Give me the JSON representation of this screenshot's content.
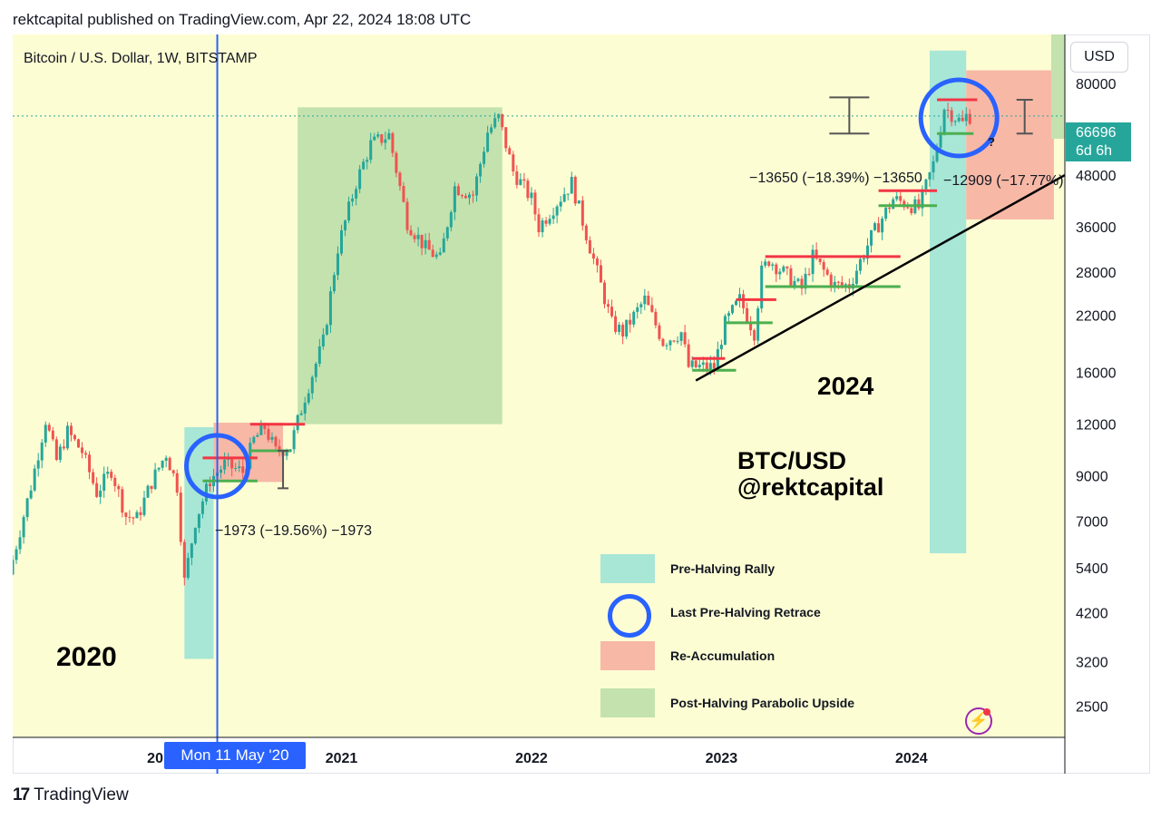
{
  "header": {
    "published_text": "rektcapital published on TradingView.com, Apr 22, 2024 18:08 UTC"
  },
  "footer": {
    "brand": "TradingView",
    "brand_mark": "17"
  },
  "chart_header": {
    "symbol_line": "Bitcoin / U.S. Dollar, 1W, BITSTAMP"
  },
  "currency_button": "USD",
  "price_tag": {
    "price": "66696",
    "countdown": "6d 6h"
  },
  "crosshair_date": "Mon 11 May '20",
  "annotations": {
    "year_2020": "2020",
    "year_2024": "2024",
    "watermark_line1": "BTC/USD",
    "watermark_line2": "@rektcapital",
    "measure_2020": "−1973 (−19.56%) −1973",
    "measure_2024_left": "−13650 (−18.39%) −13650",
    "measure_2024_right": "−12909 (−17.77%)",
    "question_mark": "?"
  },
  "legend": [
    {
      "label": "Pre-Halving Rally",
      "color": "#a8e6d6",
      "shape": "rect"
    },
    {
      "label": "Last Pre-Halving Retrace",
      "color": "#2962ff",
      "shape": "circle"
    },
    {
      "label": "Re-Accumulation",
      "color": "#f7b8a6",
      "shape": "rect"
    },
    {
      "label": "Post-Halving Parabolic Upside",
      "color": "#c3e2ae",
      "shape": "rect"
    }
  ],
  "colors": {
    "background": "#fdfdd3",
    "up": "#26a69a",
    "down": "#ef5350",
    "rally": "#a8e6d6",
    "reaccumulation": "#f7b8a6",
    "parabolic": "#c3e2ae",
    "retrace_circle": "#2962ff",
    "resistance": "#f23645",
    "support": "#4caf50"
  },
  "chart_data": {
    "type": "candlestick",
    "title": "Bitcoin / U.S. Dollar, 1W, BITSTAMP",
    "y_scale": "log",
    "ylim": [
      2100,
      105000
    ],
    "y_ticks": [
      80000,
      48000,
      36000,
      28000,
      22000,
      16000,
      12000,
      9000,
      7000,
      5400,
      4200,
      3200,
      2500
    ],
    "xlim": [
      "2019-04-15",
      "2024-10-21"
    ],
    "x_tick_labels": [
      "20",
      "2021",
      "2022",
      "2023",
      "2024"
    ],
    "last_price": 66696,
    "price_path": [
      [
        "2019-04-15",
        5200
      ],
      [
        "2019-05-27",
        8500
      ],
      [
        "2019-06-24",
        12300
      ],
      [
        "2019-07-15",
        9800
      ],
      [
        "2019-08-05",
        11500
      ],
      [
        "2019-09-02",
        10300
      ],
      [
        "2019-09-30",
        8200
      ],
      [
        "2019-10-28",
        9300
      ],
      [
        "2019-11-25",
        7200
      ],
      [
        "2019-12-16",
        7100
      ],
      [
        "2020-01-13",
        8700
      ],
      [
        "2020-02-10",
        10200
      ],
      [
        "2020-03-02",
        8500
      ],
      [
        "2020-03-16",
        5000
      ],
      [
        "2020-04-06",
        7000
      ],
      [
        "2020-05-04",
        8800
      ],
      [
        "2020-06-01",
        9600
      ],
      [
        "2020-07-06",
        9200
      ],
      [
        "2020-07-27",
        11000
      ],
      [
        "2020-08-17",
        11800
      ],
      [
        "2020-09-07",
        10300
      ],
      [
        "2020-10-05",
        10600
      ],
      [
        "2020-11-02",
        14000
      ],
      [
        "2020-12-07",
        19000
      ],
      [
        "2021-01-04",
        32000
      ],
      [
        "2021-02-08",
        46000
      ],
      [
        "2021-03-08",
        57000
      ],
      [
        "2021-04-12",
        60000
      ],
      [
        "2021-05-17",
        37000
      ],
      [
        "2021-06-21",
        32000
      ],
      [
        "2021-07-19",
        30000
      ],
      [
        "2021-08-16",
        45000
      ],
      [
        "2021-09-20",
        43000
      ],
      [
        "2021-10-18",
        61000
      ],
      [
        "2021-11-08",
        66000
      ],
      [
        "2021-12-06",
        49000
      ],
      [
        "2022-01-10",
        42000
      ],
      [
        "2022-01-24",
        36000
      ],
      [
        "2022-03-28",
        46000
      ],
      [
        "2022-05-09",
        30000
      ],
      [
        "2022-06-13",
        21000
      ],
      [
        "2022-07-04",
        20000
      ],
      [
        "2022-08-15",
        24000
      ],
      [
        "2022-09-19",
        19000
      ],
      [
        "2022-10-24",
        20000
      ],
      [
        "2022-11-07",
        16500
      ],
      [
        "2022-12-26",
        16500
      ],
      [
        "2023-01-16",
        21000
      ],
      [
        "2023-02-13",
        24000
      ],
      [
        "2023-03-13",
        20000
      ],
      [
        "2023-03-27",
        28000
      ],
      [
        "2023-04-10",
        30000
      ],
      [
        "2023-06-12",
        25500
      ],
      [
        "2023-07-03",
        30500
      ],
      [
        "2023-08-14",
        26000
      ],
      [
        "2023-09-11",
        26000
      ],
      [
        "2023-10-23",
        34000
      ],
      [
        "2023-12-04",
        42000
      ],
      [
        "2024-01-22",
        40000
      ],
      [
        "2024-02-19",
        51000
      ],
      [
        "2024-03-11",
        70000
      ],
      [
        "2024-04-15",
        64000
      ],
      [
        "2024-04-22",
        66696
      ]
    ],
    "zones": [
      {
        "kind": "pre_halving_rally",
        "x": [
          "2020-03-09",
          "2020-05-04"
        ],
        "y": [
          3250,
          11800
        ]
      },
      {
        "kind": "re_accumulation",
        "x": [
          "2020-05-04",
          "2020-09-14"
        ],
        "y": [
          8700,
          12100
        ]
      },
      {
        "kind": "post_halving_parabolic",
        "x": [
          "2020-10-12",
          "2021-11-08"
        ],
        "y": [
          12000,
          70000
        ]
      },
      {
        "kind": "pre_halving_rally",
        "x": [
          "2024-02-05",
          "2024-04-15"
        ],
        "y": [
          5850,
          96000
        ]
      },
      {
        "kind": "re_accumulation",
        "x": [
          "2024-04-15",
          "2024-09-30"
        ],
        "y": [
          37500,
          86000
        ]
      }
    ],
    "horizontal_levels": [
      {
        "color": "resistance",
        "x": [
          "2020-04-13",
          "2020-07-27"
        ],
        "y": 9950
      },
      {
        "color": "support",
        "x": [
          "2020-04-13",
          "2020-07-27"
        ],
        "y": 8750
      },
      {
        "color": "resistance",
        "x": [
          "2020-07-13",
          "2020-10-26"
        ],
        "y": 12000
      },
      {
        "color": "support",
        "x": [
          "2020-07-13",
          "2020-09-28"
        ],
        "y": 10350
      },
      {
        "color": "resistance",
        "x": [
          "2022-11-07",
          "2023-01-09"
        ],
        "y": 17300
      },
      {
        "color": "support",
        "x": [
          "2022-11-07",
          "2023-01-30"
        ],
        "y": 16200
      },
      {
        "color": "resistance",
        "x": [
          "2023-01-30",
          "2023-04-17"
        ],
        "y": 24000
      },
      {
        "color": "support",
        "x": [
          "2023-01-09",
          "2023-04-10"
        ],
        "y": 21100
      },
      {
        "color": "resistance",
        "x": [
          "2023-03-27",
          "2023-12-11"
        ],
        "y": 30500
      },
      {
        "color": "support",
        "x": [
          "2023-03-27",
          "2023-12-11"
        ],
        "y": 25800
      },
      {
        "color": "resistance",
        "x": [
          "2023-10-30",
          "2024-02-19"
        ],
        "y": 44000
      },
      {
        "color": "support",
        "x": [
          "2023-10-30",
          "2024-02-19"
        ],
        "y": 40500
      },
      {
        "color": "resistance",
        "x": [
          "2024-02-19",
          "2024-05-06"
        ],
        "y": 73000
      },
      {
        "color": "support",
        "x": [
          "2024-02-19",
          "2024-04-29"
        ],
        "y": 60500
      }
    ],
    "trendline": {
      "from": [
        "2022-11-14",
        15300
      ],
      "to": [
        "2024-10-21",
        48000
      ]
    },
    "retrace_circles": [
      {
        "center": [
          "2020-05-11",
          9500
        ]
      },
      {
        "center": [
          "2024-04-01",
          66000
        ]
      }
    ],
    "crosshair": "2020-05-11",
    "current_price_line": 66696
  }
}
